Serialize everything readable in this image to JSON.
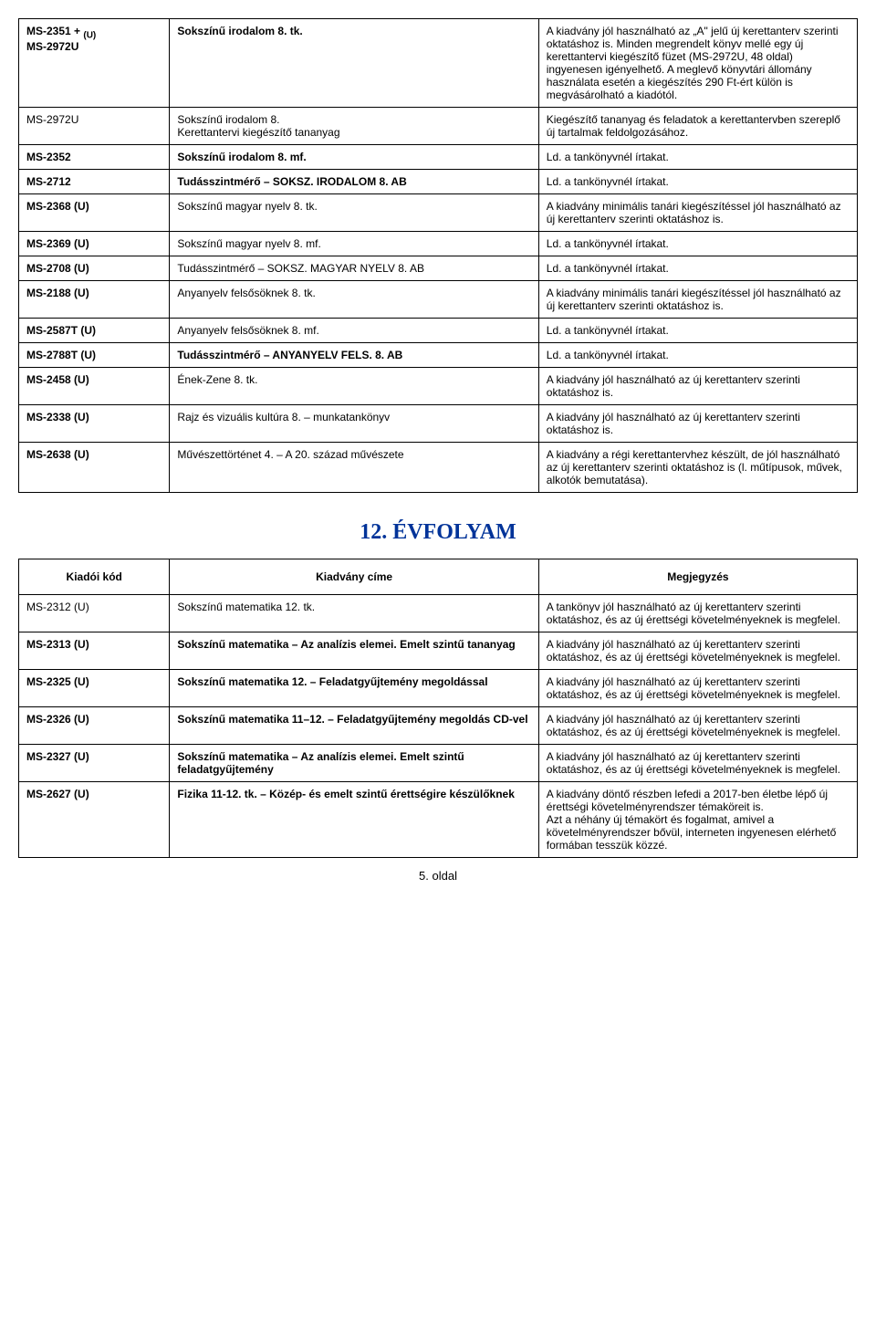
{
  "table1": {
    "rows": [
      {
        "code_html": "MS-2351 + <sub style='font-size:10px'>(U)</sub><br>MS-2972U",
        "title": "Sokszínű irodalom 8. tk.",
        "title_bold": true,
        "note": "A kiadvány jól használható az „A\" jelű új kerettanterv szerinti oktatáshoz is. Minden megrendelt könyv mellé egy új kerettantervi kiegészítő füzet (MS-2972U, 48 oldal) ingyenesen igényelhető. A meglevő könyvtári állomány használata esetén a kiegészítés 290 Ft-ért külön is megvásárolható a kiadótól."
      },
      {
        "code": "MS-2972U",
        "title": "Sokszínű irodalom 8.\nKerettantervi kiegészítő tananyag",
        "note": "Kiegészítő tananyag és feladatok a kerettantervben szereplő új tartalmak feldolgozásához."
      },
      {
        "code": "MS-2352",
        "code_bold": true,
        "title": "Sokszínű irodalom 8. mf.",
        "title_bold": true,
        "note": "Ld. a tankönyvnél írtakat."
      },
      {
        "code": "MS-2712",
        "code_bold": true,
        "title": "Tudásszintmérő – SOKSZ. IRODALOM 8. AB",
        "title_bold": true,
        "note": "Ld. a tankönyvnél írtakat."
      },
      {
        "code": "MS-2368 (U)",
        "code_bold": true,
        "title": "Sokszínű magyar nyelv 8. tk.",
        "note": "A kiadvány minimális tanári kiegészítéssel jól használható az új kerettanterv szerinti oktatáshoz is."
      },
      {
        "code": "MS-2369 (U)",
        "code_bold": true,
        "title": "Sokszínű magyar nyelv 8. mf.",
        "note": "Ld. a tankönyvnél írtakat."
      },
      {
        "code": "MS-2708 (U)",
        "code_bold": true,
        "title": "Tudásszintmérő – SOKSZ. MAGYAR NYELV 8. AB",
        "note": "Ld. a tankönyvnél írtakat."
      },
      {
        "code": "MS-2188 (U)",
        "code_bold": true,
        "title": "Anyanyelv felsősöknek 8. tk.",
        "note": "A kiadvány minimális tanári kiegészítéssel jól használható az új kerettanterv szerinti oktatáshoz is."
      },
      {
        "code": "MS-2587T (U)",
        "code_bold": true,
        "title": "Anyanyelv felsősöknek 8. mf.",
        "note": "Ld. a tankönyvnél írtakat."
      },
      {
        "code": "MS-2788T (U)",
        "code_bold": true,
        "title": "Tudásszintmérő – ANYANYELV FELS. 8. AB",
        "title_bold": true,
        "note": "Ld. a tankönyvnél írtakat."
      },
      {
        "code": "MS-2458 (U)",
        "code_bold": true,
        "title": "Ének-Zene 8. tk.",
        "note": "A kiadvány jól használható az új kerettanterv szerinti oktatáshoz is."
      },
      {
        "code": "MS-2338 (U)",
        "code_bold": true,
        "title": "Rajz és vizuális kultúra 8. – munkatankönyv",
        "note": "A kiadvány jól használható az új kerettanterv szerinti oktatáshoz is."
      },
      {
        "code": "MS-2638 (U)",
        "code_bold": true,
        "title": "Művészettörténet 4. – A 20. század művészete",
        "note": "A kiadvány a régi kerettantervhez készült, de jól használható az új kerettanterv szerinti oktatáshoz is (l. műtípusok, művek, alkotók bemutatása)."
      }
    ]
  },
  "heading": "12. ÉVFOLYAM",
  "table2": {
    "headers": [
      "Kiadói kód",
      "Kiadvány címe",
      "Megjegyzés"
    ],
    "rows": [
      {
        "code": "MS-2312 (U)",
        "title": "Sokszínű matematika 12. tk.",
        "note": "A tankönyv jól használható az új kerettanterv szerinti oktatáshoz, és az új érettségi követelményeknek is megfelel."
      },
      {
        "code": "MS-2313 (U)",
        "code_bold": true,
        "title": "Sokszínű matematika – Az analízis elemei. Emelt szintű tananyag",
        "title_bold": true,
        "note": "A kiadvány jól használható az új kerettanterv szerinti oktatáshoz, és az új érettségi követelményeknek is megfelel."
      },
      {
        "code": "MS-2325 (U)",
        "code_bold": true,
        "title": "Sokszínű matematika 12. – Feladatgyűjtemény megoldással",
        "title_bold": true,
        "note": "A kiadvány jól használható az új kerettanterv szerinti oktatáshoz, és az új érettségi követelményeknek is megfelel."
      },
      {
        "code": "MS-2326 (U)",
        "code_bold": true,
        "title": "Sokszínű matematika 11–12. – Feladatgyűjtemény megoldás CD-vel",
        "title_bold": true,
        "note": "A kiadvány jól használható az új kerettanterv szerinti oktatáshoz, és az új érettségi követelményeknek is megfelel."
      },
      {
        "code": "MS-2327 (U)",
        "code_bold": true,
        "title": "Sokszínű matematika – Az analízis elemei. Emelt szintű feladatgyűjtemény",
        "title_bold": true,
        "note": "A kiadvány jól használható az új kerettanterv szerinti oktatáshoz, és az új érettségi követelményeknek is megfelel."
      },
      {
        "code": "MS-2627 (U)",
        "code_bold": true,
        "title": "Fizika 11-12. tk. – Közép- és emelt szintű érettségire készülőknek",
        "title_bold": true,
        "note": "A kiadvány döntő részben lefedi a 2017-ben életbe lépő új érettségi követelményrendszer témaköreit is.\nAzt a néhány új témakört és fogalmat, amivel a követelményrendszer bővül, interneten ingyenesen elérhető formában tesszük közzé."
      }
    ]
  },
  "footer": "5. oldal"
}
